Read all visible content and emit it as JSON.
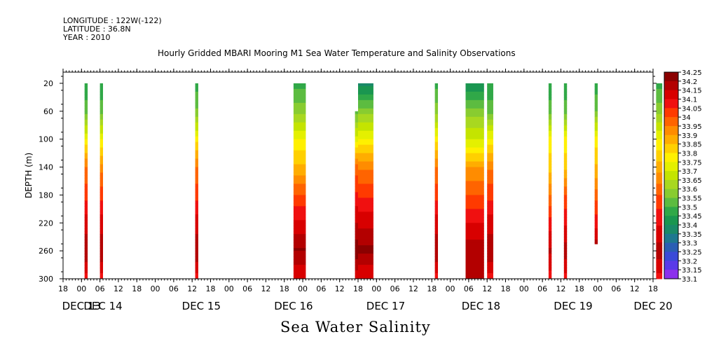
{
  "header": {
    "longitude": "LONGITUDE : 122W(-122)",
    "latitude": "LATITUDE : 36.8N",
    "year": "YEAR : 2010"
  },
  "chart_data": {
    "type": "heatmap",
    "title": "Hourly Gridded MBARI Mooring M1 Sea Water Temperature and Salinity Observations",
    "bottom_label": "Sea Water Salinity",
    "ylabel": "DEPTH (m)",
    "ylim": [
      300,
      4
    ],
    "y_reversed": true,
    "y_ticks": [
      20,
      60,
      100,
      140,
      180,
      220,
      260,
      300
    ],
    "x_range_hours": [
      -6,
      186
    ],
    "x_tick_hours": [
      -6,
      0,
      6,
      12,
      18,
      24,
      30,
      36,
      42,
      48,
      54,
      60,
      66,
      72,
      78,
      84,
      90,
      96,
      102,
      108,
      114,
      120,
      126,
      132,
      138,
      144,
      150,
      156,
      162,
      168,
      174,
      180,
      186
    ],
    "x_tick_labels": [
      "18",
      "00",
      "06",
      "12",
      "18",
      "00",
      "06",
      "12",
      "18",
      "00",
      "06",
      "12",
      "18",
      "00",
      "06",
      "12",
      "18",
      "00",
      "06",
      "12",
      "18",
      "00",
      "06",
      "12",
      "18",
      "00",
      "06",
      "12",
      "18",
      "00",
      "06",
      "12",
      "18"
    ],
    "day_labels": [
      {
        "label": "DEC 13",
        "hour": 0
      },
      {
        "label": "DEC 14",
        "hour": 7
      },
      {
        "label": "DEC 15",
        "hour": 39
      },
      {
        "label": "DEC 16",
        "hour": 69
      },
      {
        "label": "DEC 17",
        "hour": 99
      },
      {
        "label": "DEC 18",
        "hour": 130
      },
      {
        "label": "DEC 19",
        "hour": 160
      },
      {
        "label": "DEC 20",
        "hour": 186
      }
    ],
    "colorbar": {
      "levels": [
        "34.25",
        "34.2",
        "34.15",
        "34.1",
        "34.05",
        "34",
        "33.95",
        "33.9",
        "33.85",
        "33.8",
        "33.75",
        "33.7",
        "33.65",
        "33.6",
        "33.55",
        "33.5",
        "33.45",
        "33.4",
        "33.35",
        "33.3",
        "33.25",
        "33.2",
        "33.15",
        "33.1"
      ],
      "colors": [
        "#8b0000",
        "#b30000",
        "#d80000",
        "#f01010",
        "#ff3a00",
        "#ff6400",
        "#ff8c00",
        "#ffad00",
        "#ffd000",
        "#fff000",
        "#e4f000",
        "#c4e400",
        "#a8d820",
        "#88cc30",
        "#5cbc40",
        "#30a848",
        "#1a9650",
        "#1a8a68",
        "#1e7890",
        "#2a5eb4",
        "#3a4ad8",
        "#5a3ae8",
        "#8c30ec",
        "#c428f0"
      ]
    },
    "columns": [
      {
        "start_hour": 1,
        "end_hour": 2,
        "profile": [
          [
            20,
            33.48
          ],
          [
            60,
            33.55
          ],
          [
            100,
            33.78
          ],
          [
            140,
            33.98
          ],
          [
            180,
            34.06
          ],
          [
            220,
            34.15
          ],
          [
            260,
            34.22
          ],
          [
            300,
            34.1
          ]
        ]
      },
      {
        "start_hour": 6,
        "end_hour": 7,
        "profile": [
          [
            20,
            33.48
          ],
          [
            60,
            33.55
          ],
          [
            100,
            33.78
          ],
          [
            140,
            33.95
          ],
          [
            180,
            34.06
          ],
          [
            220,
            34.15
          ],
          [
            260,
            34.22
          ],
          [
            300,
            34.1
          ]
        ]
      },
      {
        "start_hour": 37,
        "end_hour": 38,
        "profile": [
          [
            20,
            33.5
          ],
          [
            60,
            33.58
          ],
          [
            100,
            33.8
          ],
          [
            140,
            33.98
          ],
          [
            180,
            34.06
          ],
          [
            220,
            34.15
          ],
          [
            260,
            34.22
          ],
          [
            300,
            34.1
          ]
        ]
      },
      {
        "start_hour": 69,
        "end_hour": 73,
        "profile": [
          [
            20,
            33.5
          ],
          [
            60,
            33.6
          ],
          [
            100,
            33.78
          ],
          [
            140,
            33.88
          ],
          [
            180,
            34.03
          ],
          [
            220,
            34.14
          ],
          [
            260,
            34.23
          ],
          [
            300,
            34.12
          ]
        ]
      },
      {
        "start_hour": 89,
        "end_hour": 90,
        "top": 60,
        "profile": [
          [
            60,
            33.55
          ],
          [
            100,
            33.75
          ],
          [
            140,
            34.0
          ],
          [
            180,
            34.08
          ],
          [
            220,
            34.18
          ],
          [
            260,
            34.25
          ],
          [
            300,
            34.15
          ]
        ]
      },
      {
        "start_hour": 90,
        "end_hour": 95,
        "profile": [
          [
            20,
            33.4
          ],
          [
            60,
            33.6
          ],
          [
            100,
            33.78
          ],
          [
            140,
            33.96
          ],
          [
            180,
            34.06
          ],
          [
            220,
            34.16
          ],
          [
            260,
            34.24
          ],
          [
            300,
            34.12
          ]
        ]
      },
      {
        "start_hour": 115,
        "end_hour": 116,
        "profile": [
          [
            20,
            33.5
          ],
          [
            60,
            33.6
          ],
          [
            100,
            33.8
          ],
          [
            140,
            33.98
          ],
          [
            180,
            34.06
          ],
          [
            220,
            34.15
          ],
          [
            260,
            34.22
          ],
          [
            300,
            34.1
          ]
        ]
      },
      {
        "start_hour": 125,
        "end_hour": 131,
        "profile": [
          [
            20,
            33.42
          ],
          [
            60,
            33.6
          ],
          [
            100,
            33.72
          ],
          [
            140,
            33.92
          ],
          [
            180,
            34.02
          ],
          [
            220,
            34.12
          ],
          [
            260,
            34.22
          ],
          [
            300,
            34.18
          ]
        ]
      },
      {
        "start_hour": 132,
        "end_hour": 134,
        "profile": [
          [
            20,
            33.48
          ],
          [
            60,
            33.56
          ],
          [
            100,
            33.78
          ],
          [
            140,
            33.96
          ],
          [
            180,
            34.06
          ],
          [
            220,
            34.15
          ],
          [
            260,
            34.22
          ],
          [
            300,
            34.1
          ]
        ]
      },
      {
        "start_hour": 152,
        "end_hour": 153,
        "profile": [
          [
            20,
            33.48
          ],
          [
            60,
            33.56
          ],
          [
            100,
            33.8
          ],
          [
            140,
            33.85
          ],
          [
            180,
            33.98
          ],
          [
            220,
            34.1
          ],
          [
            260,
            34.18
          ],
          [
            300,
            34.1
          ]
        ]
      },
      {
        "start_hour": 157,
        "end_hour": 158,
        "profile": [
          [
            20,
            33.48
          ],
          [
            60,
            33.56
          ],
          [
            100,
            33.8
          ],
          [
            140,
            33.85
          ],
          [
            180,
            34.02
          ],
          [
            220,
            34.12
          ],
          [
            260,
            34.2
          ],
          [
            300,
            34.1
          ]
        ]
      },
      {
        "start_hour": 167,
        "end_hour": 168,
        "bottom": 250,
        "profile": [
          [
            20,
            33.48
          ],
          [
            60,
            33.58
          ],
          [
            100,
            33.8
          ],
          [
            140,
            33.88
          ],
          [
            180,
            34.0
          ],
          [
            220,
            34.1
          ],
          [
            250,
            34.2
          ]
        ]
      },
      {
        "start_hour": 187,
        "end_hour": 189,
        "profile": [
          [
            20,
            33.5
          ],
          [
            60,
            33.6
          ],
          [
            100,
            33.78
          ],
          [
            140,
            33.9
          ],
          [
            180,
            34.02
          ],
          [
            220,
            34.12
          ],
          [
            260,
            34.2
          ],
          [
            300,
            34.1
          ]
        ]
      }
    ]
  }
}
